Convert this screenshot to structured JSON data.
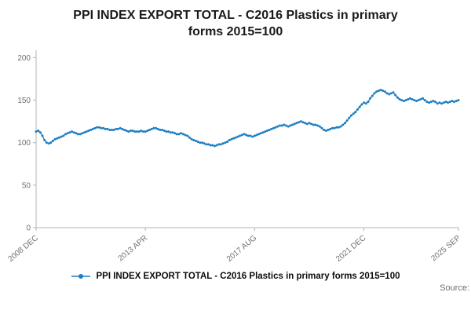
{
  "title": "PPI INDEX EXPORT TOTAL - C2016 Plastics in primary forms 2015=100",
  "legend": {
    "label": "PPI INDEX EXPORT TOTAL - C2016 Plastics in primary forms 2015=100"
  },
  "footer": {
    "source": "Source:"
  },
  "chart_data": {
    "type": "line",
    "title": "PPI INDEX EXPORT TOTAL - C2016 Plastics in primary forms 2015=100",
    "x_range": [
      "2008 DEC",
      "2025 SEP"
    ],
    "frequency": "monthly",
    "x_tick_labels": [
      "2008 DEC",
      "2013 APR",
      "2017 AUG",
      "2021 DEC",
      "2025 SEP"
    ],
    "x_tick_indices": [
      0,
      52,
      104,
      156,
      201
    ],
    "y_ticks": [
      0,
      50,
      100,
      150,
      200
    ],
    "ylim": [
      0,
      205
    ],
    "grid": false,
    "legend_position": "bottom",
    "line_color": "#1d7ec2",
    "axis_color": "#b3b3b3",
    "tick_label_color": "#6f6f6f",
    "series": [
      {
        "name": "PPI INDEX EXPORT TOTAL - C2016 Plastics in primary forms 2015=100",
        "values": [
          113,
          114,
          112,
          108,
          103,
          100,
          99,
          100,
          102,
          104,
          105,
          106,
          107,
          108,
          110,
          111,
          112,
          113,
          112,
          111,
          110,
          110,
          111,
          112,
          113,
          114,
          115,
          116,
          117,
          118,
          118,
          117,
          117,
          116,
          116,
          115,
          115,
          115,
          116,
          116,
          117,
          116,
          115,
          114,
          113,
          114,
          114,
          113,
          113,
          113,
          114,
          113,
          113,
          114,
          115,
          116,
          117,
          117,
          116,
          115,
          115,
          114,
          113,
          113,
          112,
          112,
          111,
          110,
          110,
          111,
          110,
          109,
          108,
          106,
          104,
          103,
          102,
          101,
          100,
          100,
          99,
          98,
          98,
          97,
          97,
          96,
          97,
          98,
          98,
          99,
          100,
          101,
          103,
          104,
          105,
          106,
          107,
          108,
          109,
          110,
          109,
          108,
          108,
          107,
          108,
          109,
          110,
          111,
          112,
          113,
          114,
          115,
          116,
          117,
          118,
          119,
          120,
          120,
          121,
          120,
          119,
          120,
          121,
          122,
          123,
          124,
          125,
          124,
          123,
          122,
          123,
          122,
          121,
          121,
          120,
          119,
          117,
          115,
          114,
          115,
          116,
          117,
          117,
          118,
          118,
          119,
          121,
          123,
          126,
          129,
          132,
          134,
          136,
          139,
          142,
          145,
          147,
          146,
          148,
          152,
          155,
          158,
          160,
          161,
          162,
          161,
          160,
          158,
          157,
          158,
          159,
          156,
          153,
          151,
          150,
          149,
          150,
          151,
          152,
          151,
          150,
          149,
          150,
          151,
          152,
          150,
          148,
          147,
          148,
          149,
          148,
          146,
          147,
          146,
          147,
          148,
          147,
          148,
          149,
          148,
          149,
          150
        ]
      }
    ]
  }
}
